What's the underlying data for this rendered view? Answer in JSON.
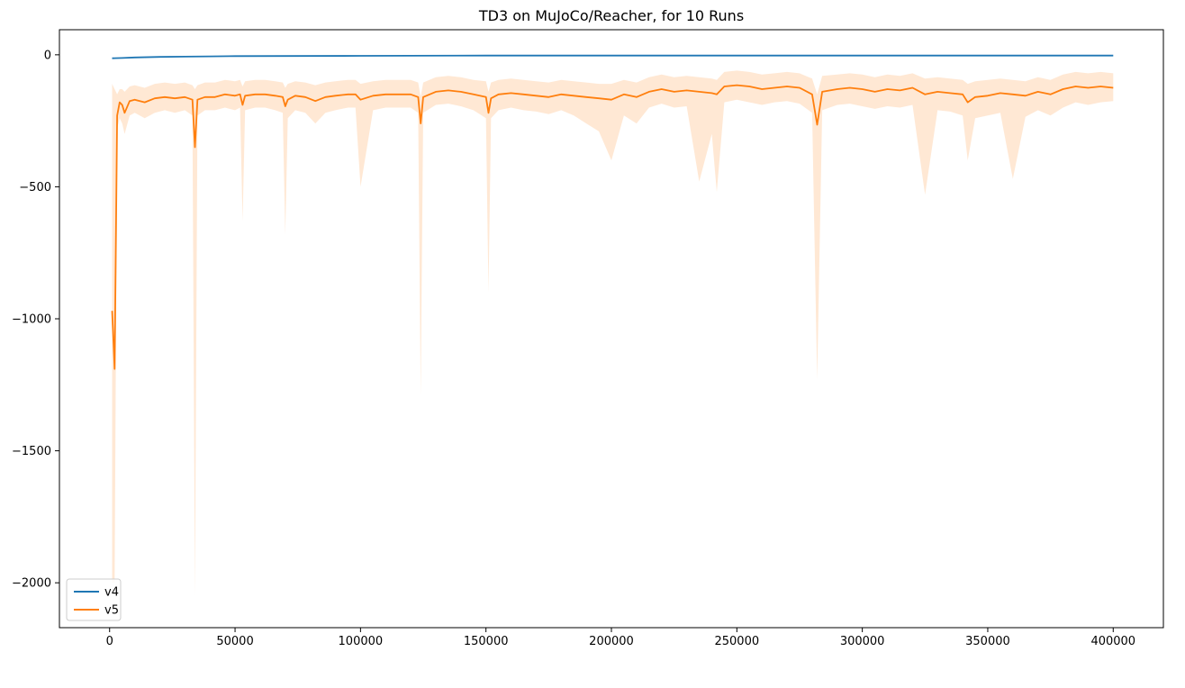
{
  "chart_data": {
    "type": "line",
    "title": "TD3 on MuJoCo/Reacher, for 10 Runs",
    "xlabel": "",
    "ylabel": "",
    "xlim": [
      -20000,
      420000
    ],
    "ylim": [
      -2170,
      95
    ],
    "xticks": [
      0,
      50000,
      100000,
      150000,
      200000,
      250000,
      300000,
      350000,
      400000
    ],
    "yticks": [
      0,
      -500,
      -1000,
      -1500,
      -2000
    ],
    "tick_labels": {
      "x": [
        "0",
        "50000",
        "100000",
        "150000",
        "200000",
        "250000",
        "300000",
        "350000",
        "400000"
      ],
      "y": [
        "0",
        "−500",
        "−1000",
        "−1500",
        "−2000"
      ]
    },
    "grid": false,
    "legend": {
      "position": "lower-left",
      "entries": [
        "v4",
        "v5"
      ]
    },
    "series": [
      {
        "name": "v4",
        "color": "#1f77b4",
        "x": [
          1000,
          5000,
          10000,
          20000,
          30000,
          40000,
          50000,
          100000,
          150000,
          200000,
          250000,
          300000,
          350000,
          400000
        ],
        "y": [
          -13,
          -12,
          -10,
          -8,
          -7,
          -6,
          -5,
          -4,
          -3,
          -3,
          -3,
          -3,
          -3,
          -3
        ]
      },
      {
        "name": "v5",
        "color": "#ff7f0e",
        "band_color": "#ffe4cc",
        "x": [
          1000,
          2000,
          3000,
          4000,
          5000,
          6000,
          8000,
          10000,
          14000,
          18000,
          22000,
          26000,
          30000,
          33000,
          34000,
          35000,
          38000,
          42000,
          46000,
          50000,
          52000,
          53000,
          54000,
          58000,
          62000,
          66000,
          69000,
          70000,
          71000,
          74000,
          78000,
          82000,
          86000,
          90000,
          95000,
          98000,
          100000,
          105000,
          110000,
          115000,
          120000,
          123000,
          124000,
          125000,
          130000,
          135000,
          140000,
          145000,
          150000,
          151000,
          152000,
          155000,
          160000,
          165000,
          170000,
          175000,
          180000,
          185000,
          190000,
          195000,
          200000,
          205000,
          210000,
          215000,
          220000,
          225000,
          230000,
          235000,
          240000,
          242000,
          245000,
          250000,
          255000,
          260000,
          265000,
          270000,
          275000,
          280000,
          282000,
          284000,
          290000,
          295000,
          300000,
          305000,
          310000,
          315000,
          320000,
          325000,
          330000,
          335000,
          340000,
          342000,
          345000,
          350000,
          355000,
          360000,
          365000,
          370000,
          375000,
          380000,
          385000,
          390000,
          395000,
          400000
        ],
        "y": [
          -970,
          -1190,
          -230,
          -180,
          -190,
          -220,
          -175,
          -170,
          -180,
          -165,
          -160,
          -165,
          -160,
          -170,
          -350,
          -170,
          -160,
          -160,
          -150,
          -155,
          -150,
          -190,
          -155,
          -150,
          -150,
          -155,
          -160,
          -195,
          -170,
          -155,
          -160,
          -175,
          -160,
          -155,
          -150,
          -150,
          -170,
          -155,
          -150,
          -150,
          -150,
          -160,
          -260,
          -160,
          -140,
          -135,
          -140,
          -150,
          -160,
          -220,
          -165,
          -150,
          -145,
          -150,
          -155,
          -160,
          -150,
          -155,
          -160,
          -165,
          -170,
          -150,
          -160,
          -140,
          -130,
          -140,
          -135,
          -140,
          -145,
          -150,
          -120,
          -115,
          -120,
          -130,
          -125,
          -120,
          -125,
          -150,
          -265,
          -140,
          -130,
          -125,
          -130,
          -140,
          -130,
          -135,
          -125,
          -150,
          -140,
          -145,
          -150,
          -180,
          -160,
          -155,
          -145,
          -150,
          -155,
          -140,
          -150,
          -130,
          -120,
          -125,
          -120,
          -125
        ],
        "band_low": [
          -2000,
          -2000,
          -280,
          -240,
          -260,
          -300,
          -230,
          -220,
          -240,
          -220,
          -210,
          -220,
          -210,
          -230,
          -2050,
          -230,
          -210,
          -210,
          -200,
          -210,
          -200,
          -630,
          -210,
          -200,
          -200,
          -210,
          -220,
          -680,
          -240,
          -210,
          -220,
          -260,
          -220,
          -210,
          -200,
          -200,
          -500,
          -210,
          -200,
          -200,
          -200,
          -220,
          -1290,
          -220,
          -190,
          -185,
          -195,
          -210,
          -240,
          -900,
          -240,
          -210,
          -200,
          -210,
          -215,
          -225,
          -210,
          -230,
          -260,
          -290,
          -400,
          -230,
          -260,
          -200,
          -185,
          -200,
          -195,
          -480,
          -300,
          -520,
          -180,
          -170,
          -180,
          -190,
          -180,
          -175,
          -185,
          -220,
          -1230,
          -210,
          -190,
          -185,
          -195,
          -205,
          -195,
          -200,
          -190,
          -530,
          -210,
          -215,
          -230,
          -400,
          -240,
          -230,
          -220,
          -470,
          -235,
          -210,
          -230,
          -200,
          -180,
          -190,
          -180,
          -175
        ],
        "band_high": [
          -110,
          -130,
          -150,
          -130,
          -130,
          -140,
          -120,
          -115,
          -125,
          -110,
          -105,
          -110,
          -105,
          -115,
          -130,
          -115,
          -105,
          -105,
          -95,
          -100,
          -95,
          -120,
          -100,
          -95,
          -95,
          -100,
          -105,
          -125,
          -110,
          -100,
          -105,
          -115,
          -105,
          -100,
          -95,
          -95,
          -110,
          -100,
          -95,
          -95,
          -95,
          -105,
          -160,
          -105,
          -85,
          -80,
          -85,
          -95,
          -100,
          -140,
          -105,
          -95,
          -90,
          -95,
          -100,
          -105,
          -95,
          -100,
          -105,
          -110,
          -110,
          -95,
          -105,
          -85,
          -75,
          -85,
          -80,
          -85,
          -90,
          -95,
          -65,
          -60,
          -65,
          -75,
          -70,
          -65,
          -70,
          -90,
          -150,
          -80,
          -75,
          -70,
          -75,
          -85,
          -75,
          -80,
          -70,
          -90,
          -85,
          -90,
          -95,
          -110,
          -100,
          -95,
          -90,
          -95,
          -100,
          -85,
          -95,
          -75,
          -65,
          -70,
          -65,
          -70
        ]
      }
    ]
  }
}
